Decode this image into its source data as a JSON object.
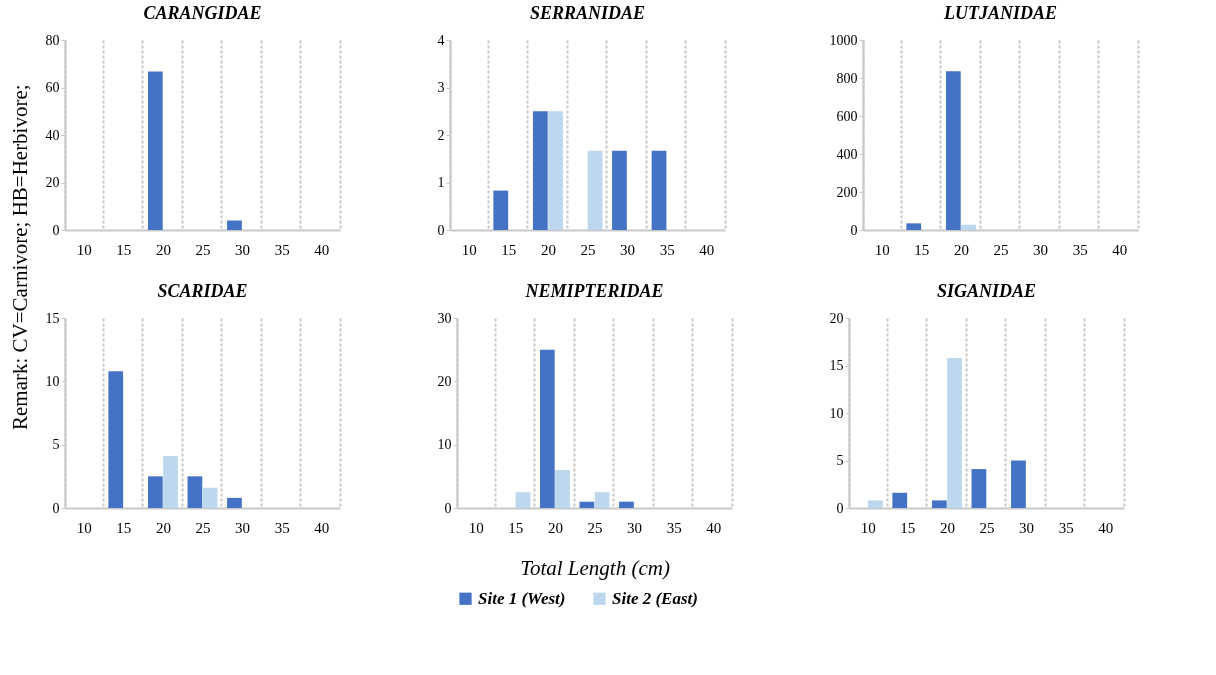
{
  "chart_data": [
    {
      "type": "bar",
      "title": "CARANGIDAE",
      "categories": [
        "10",
        "15",
        "20",
        "25",
        "30",
        "35",
        "40"
      ],
      "ylim": [
        0,
        80
      ],
      "yticks": [
        0,
        20,
        40,
        60,
        80
      ],
      "grid": "x",
      "series": [
        {
          "color": "#4472c4",
          "values": [
            0,
            0,
            66.7,
            0,
            4,
            0,
            0
          ]
        },
        {
          "color": "#bdd7ee",
          "values": [
            0,
            0,
            0,
            0,
            0,
            0,
            0
          ]
        }
      ]
    },
    {
      "type": "bar",
      "title": "SERRANIDAE",
      "categories": [
        "10",
        "15",
        "20",
        "25",
        "30",
        "35",
        "40"
      ],
      "ylim": [
        0,
        4
      ],
      "yticks": [
        0,
        1,
        2,
        3,
        4
      ],
      "grid": "x",
      "series": [
        {
          "color": "#4472c4",
          "values": [
            0,
            0.83,
            2.5,
            0,
            1.67,
            1.67,
            0
          ]
        },
        {
          "color": "#bdd7ee",
          "values": [
            0,
            0,
            2.5,
            1.67,
            0,
            0,
            0
          ]
        }
      ]
    },
    {
      "type": "bar",
      "title": "LUTJANIDAE",
      "categories": [
        "10",
        "15",
        "20",
        "25",
        "30",
        "35",
        "40"
      ],
      "ylim": [
        0,
        1000
      ],
      "yticks": [
        0,
        200,
        400,
        600,
        800,
        1000
      ],
      "grid": "x",
      "series": [
        {
          "color": "#4472c4",
          "values": [
            0,
            35,
            835,
            0,
            0,
            0,
            0
          ]
        },
        {
          "color": "#bdd7ee",
          "values": [
            0,
            0,
            28,
            0,
            0,
            0,
            0
          ]
        }
      ]
    },
    {
      "type": "bar",
      "title": "SCARIDAE",
      "categories": [
        "10",
        "15",
        "20",
        "25",
        "30",
        "35",
        "40"
      ],
      "ylim": [
        0,
        15
      ],
      "yticks": [
        0,
        5,
        10,
        15
      ],
      "grid": "x",
      "annotations": [
        "Remark: CV=Carnivore; HB=Herbivore;"
      ],
      "series": [
        {
          "color": "#4472c4",
          "values": [
            0,
            10.8,
            2.5,
            2.5,
            0.8,
            0,
            0
          ]
        },
        {
          "color": "#bdd7ee",
          "values": [
            0,
            0,
            4.1,
            1.6,
            0,
            0,
            0
          ]
        }
      ]
    },
    {
      "type": "bar",
      "title": "NEMIPTERIDAE",
      "xlabel": "Total Length (cm)",
      "legend": "bottom",
      "categories": [
        "10",
        "15",
        "20",
        "25",
        "30",
        "35",
        "40"
      ],
      "ylim": [
        0,
        30
      ],
      "yticks": [
        0,
        10,
        20,
        30
      ],
      "grid": "x",
      "series": [
        {
          "name": "Site 1 (West)",
          "color": "#4472c4",
          "values": [
            0,
            0,
            25,
            1,
            1,
            0,
            0
          ]
        },
        {
          "name": "Site 2 (East)",
          "color": "#bdd7ee",
          "values": [
            0,
            2.5,
            6,
            2.5,
            0,
            0,
            0
          ]
        }
      ]
    },
    {
      "type": "bar",
      "title": "SIGANIDAE",
      "categories": [
        "10",
        "15",
        "20",
        "25",
        "30",
        "35",
        "40"
      ],
      "ylim": [
        0,
        20
      ],
      "yticks": [
        0,
        5,
        10,
        15,
        20
      ],
      "grid": "x",
      "series": [
        {
          "color": "#4472c4",
          "values": [
            0,
            1.6,
            0.8,
            4.1,
            5,
            0,
            0
          ]
        },
        {
          "color": "#bdd7ee",
          "values": [
            0.8,
            0,
            15.8,
            0,
            0,
            0,
            0
          ]
        }
      ]
    }
  ]
}
